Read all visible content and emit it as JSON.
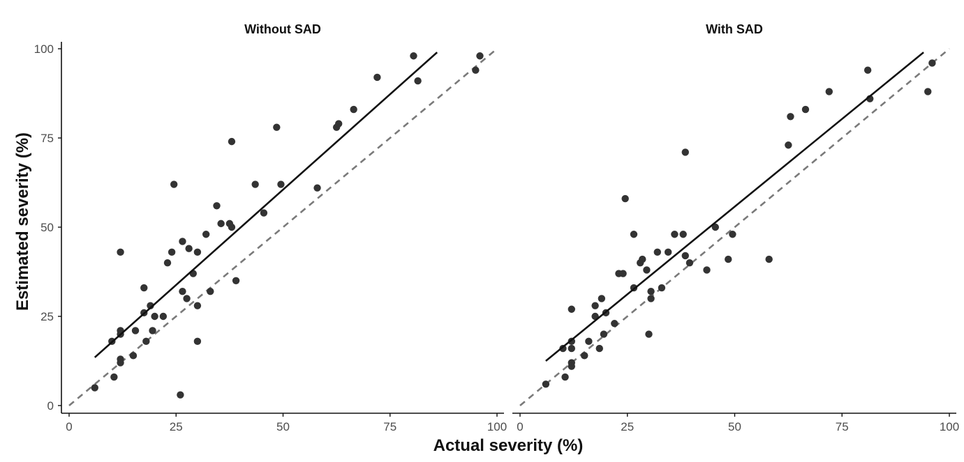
{
  "chart_data": {
    "type": "scatter",
    "xlabel": "Actual severity (%)",
    "ylabel": "Estimated severity (%)",
    "panels": [
      {
        "title": "Without SAD",
        "xlim": [
          0,
          100
        ],
        "ylim": [
          0,
          100
        ],
        "xticks": [
          0,
          25,
          50,
          75,
          100
        ],
        "yticks": [
          0,
          25,
          50,
          75,
          100
        ],
        "fit_line": {
          "x": [
            6,
            86
          ],
          "y": [
            13.5,
            99
          ]
        },
        "reference_line": {
          "x": [
            0,
            100
          ],
          "y": [
            0,
            100
          ]
        },
        "points": [
          [
            6,
            5
          ],
          [
            10,
            18
          ],
          [
            10.5,
            8
          ],
          [
            12,
            43
          ],
          [
            12,
            21
          ],
          [
            12,
            20
          ],
          [
            12,
            13
          ],
          [
            12,
            12
          ],
          [
            15,
            14
          ],
          [
            15.5,
            21
          ],
          [
            17.5,
            33
          ],
          [
            17.5,
            26
          ],
          [
            18,
            18
          ],
          [
            19,
            28
          ],
          [
            19.5,
            21
          ],
          [
            20,
            25
          ],
          [
            22,
            25
          ],
          [
            23,
            40
          ],
          [
            24,
            43
          ],
          [
            24.5,
            62
          ],
          [
            26,
            3
          ],
          [
            26.5,
            46
          ],
          [
            26.5,
            32
          ],
          [
            27.5,
            30
          ],
          [
            28,
            44
          ],
          [
            29,
            37
          ],
          [
            30,
            43
          ],
          [
            30,
            18
          ],
          [
            30,
            28
          ],
          [
            32,
            48
          ],
          [
            33,
            32
          ],
          [
            34.5,
            56
          ],
          [
            35.5,
            51
          ],
          [
            37.5,
            51
          ],
          [
            38,
            50
          ],
          [
            38,
            74
          ],
          [
            39,
            35
          ],
          [
            43.5,
            62
          ],
          [
            45.5,
            54
          ],
          [
            48.5,
            78
          ],
          [
            49.5,
            62
          ],
          [
            58,
            61
          ],
          [
            62.5,
            78
          ],
          [
            63,
            79
          ],
          [
            66.5,
            83
          ],
          [
            72,
            92
          ],
          [
            80.5,
            98
          ],
          [
            81.5,
            91
          ],
          [
            95,
            94
          ],
          [
            96,
            98
          ]
        ]
      },
      {
        "title": "With SAD",
        "xlim": [
          0,
          100
        ],
        "ylim": [
          0,
          100
        ],
        "xticks": [
          0,
          25,
          50,
          75,
          100
        ],
        "yticks": [
          0,
          25,
          50,
          75,
          100
        ],
        "fit_line": {
          "x": [
            6,
            94
          ],
          "y": [
            12.5,
            99
          ]
        },
        "reference_line": {
          "x": [
            0,
            100
          ],
          "y": [
            0,
            100
          ]
        },
        "points": [
          [
            6,
            6
          ],
          [
            10,
            16
          ],
          [
            10.5,
            8
          ],
          [
            12,
            27
          ],
          [
            12,
            18
          ],
          [
            12,
            16
          ],
          [
            12,
            12
          ],
          [
            12,
            11
          ],
          [
            15,
            14
          ],
          [
            16,
            18
          ],
          [
            17.5,
            28
          ],
          [
            17.5,
            25
          ],
          [
            18.5,
            16
          ],
          [
            19,
            30
          ],
          [
            19.5,
            20
          ],
          [
            20,
            26
          ],
          [
            22,
            23
          ],
          [
            23,
            37
          ],
          [
            24,
            37
          ],
          [
            24.5,
            58
          ],
          [
            26.5,
            48
          ],
          [
            26.5,
            33
          ],
          [
            28,
            40
          ],
          [
            28.5,
            41
          ],
          [
            29.5,
            38
          ],
          [
            30,
            20
          ],
          [
            30.5,
            32
          ],
          [
            30.5,
            30
          ],
          [
            32,
            43
          ],
          [
            33,
            33
          ],
          [
            34.5,
            43
          ],
          [
            36,
            48
          ],
          [
            38,
            48
          ],
          [
            38.5,
            71
          ],
          [
            38.5,
            42
          ],
          [
            39.5,
            40
          ],
          [
            43.5,
            38
          ],
          [
            45.5,
            50
          ],
          [
            48.5,
            41
          ],
          [
            49.5,
            48
          ],
          [
            58,
            41
          ],
          [
            62.5,
            73
          ],
          [
            63,
            81
          ],
          [
            66.5,
            83
          ],
          [
            72,
            88
          ],
          [
            81,
            94
          ],
          [
            81.5,
            86
          ],
          [
            95,
            88
          ],
          [
            96,
            96
          ]
        ]
      }
    ]
  }
}
